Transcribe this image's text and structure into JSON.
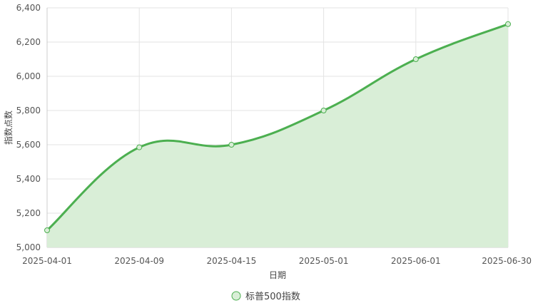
{
  "chart_data": {
    "type": "area",
    "x": [
      "2025-04-01",
      "2025-04-09",
      "2025-04-15",
      "2025-05-01",
      "2025-06-01",
      "2025-06-30"
    ],
    "series": [
      {
        "name": "标普500指数",
        "values": [
          5100,
          5585,
          5600,
          5800,
          6100,
          6305
        ],
        "color": "#4CAF50",
        "fill": "#D9EED7"
      }
    ],
    "xlabel": "日期",
    "ylabel": "指数点数",
    "ylim": [
      5000,
      6400
    ],
    "yticks": [
      "5,000",
      "5,200",
      "5,400",
      "5,600",
      "5,800",
      "6,000",
      "6,200",
      "6,400"
    ],
    "grid": true,
    "legend_position": "bottom-center"
  }
}
